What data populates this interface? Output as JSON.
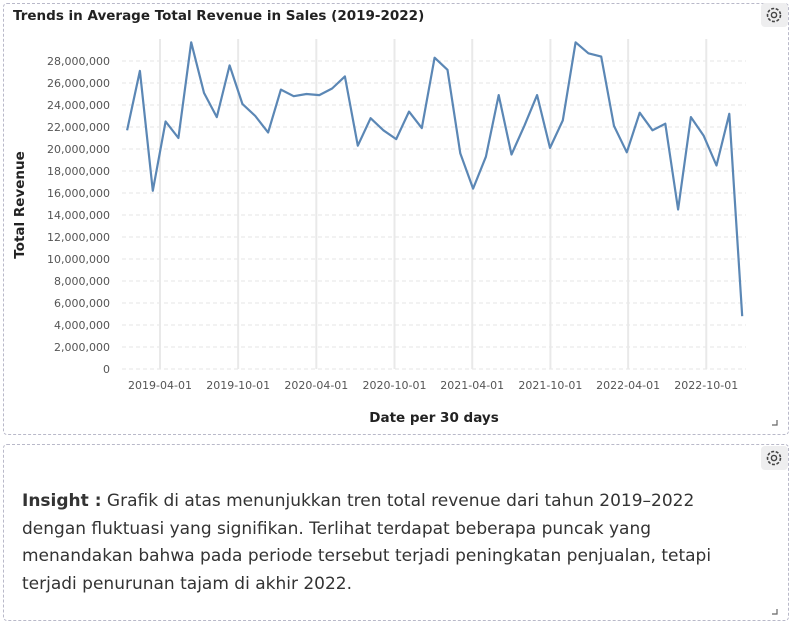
{
  "chart_data": {
    "type": "line",
    "title": "Trends in Average Total Revenue in Sales (2019-2022)",
    "x_label": "Date per 30 days",
    "y_label": "Total Revenue",
    "x": [
      "2019-01-14",
      "2019-02-13",
      "2019-03-15",
      "2019-04-14",
      "2019-05-14",
      "2019-06-13",
      "2019-07-13",
      "2019-08-12",
      "2019-09-11",
      "2019-10-11",
      "2019-11-10",
      "2019-12-10",
      "2020-01-09",
      "2020-02-08",
      "2020-03-09",
      "2020-04-08",
      "2020-05-08",
      "2020-06-07",
      "2020-07-07",
      "2020-08-06",
      "2020-09-05",
      "2020-10-05",
      "2020-11-04",
      "2020-12-04",
      "2021-01-03",
      "2021-02-02",
      "2021-03-04",
      "2021-04-03",
      "2021-05-03",
      "2021-06-02",
      "2021-07-02",
      "2021-08-01",
      "2021-08-31",
      "2021-09-30",
      "2021-10-30",
      "2021-11-29",
      "2021-12-29",
      "2022-01-28",
      "2022-02-27",
      "2022-03-29",
      "2022-04-28",
      "2022-05-28",
      "2022-06-27",
      "2022-07-27",
      "2022-08-26",
      "2022-09-25",
      "2022-10-25",
      "2022-11-24",
      "2022-12-24"
    ],
    "values": [
      21700000,
      27100000,
      16200000,
      22500000,
      21000000,
      29700000,
      25100000,
      22900000,
      27600000,
      24100000,
      23000000,
      21500000,
      25400000,
      24800000,
      25000000,
      24900000,
      25500000,
      26600000,
      20300000,
      22800000,
      21700000,
      20900000,
      23400000,
      21900000,
      28300000,
      27200000,
      19600000,
      16400000,
      19300000,
      24900000,
      19500000,
      22100000,
      24900000,
      20100000,
      22600000,
      29700000,
      28700000,
      28400000,
      22100000,
      19700000,
      23300000,
      21700000,
      22300000,
      14500000,
      22900000,
      21200000,
      18500000,
      23200000,
      4800000
    ],
    "color": "#5b87b5",
    "xlim": [
      "2019-01-02",
      "2023-01-02"
    ],
    "xticks": [
      "2019-04-01",
      "2019-10-01",
      "2020-04-01",
      "2020-10-01",
      "2021-04-01",
      "2021-10-01",
      "2022-04-01",
      "2022-10-01"
    ],
    "ylim": [
      0,
      30000000
    ],
    "yticks": [
      0,
      {
        "value": 2000000,
        "label": "2,000,000"
      },
      {
        "value": 4000000,
        "label": "4,000,000"
      },
      {
        "value": 6000000,
        "label": "6,000,000"
      },
      {
        "value": 8000000,
        "label": "8,000,000"
      },
      {
        "value": 10000000,
        "label": "10,000,000"
      },
      {
        "value": 12000000,
        "label": "12,000,000"
      },
      {
        "value": 14000000,
        "label": "14,000,000"
      },
      {
        "value": 16000000,
        "label": "16,000,000"
      },
      {
        "value": 18000000,
        "label": "18,000,000"
      },
      {
        "value": 20000000,
        "label": "20,000,000"
      },
      {
        "value": 22000000,
        "label": "22,000,000"
      },
      {
        "value": 24000000,
        "label": "24,000,000"
      },
      {
        "value": 26000000,
        "label": "26,000,000"
      },
      {
        "value": 28000000,
        "label": "28,000,000"
      }
    ],
    "grid": true
  },
  "insight": {
    "label": "Insight :",
    "text": "Grafik di atas menunjukkan tren total revenue dari tahun 2019–2022 dengan fluktuasi yang signifikan. Terlihat terdapat beberapa puncak yang menandakan bahwa pada periode tersebut terjadi peningkatan penjualan, tetapi terjadi penurunan tajam di akhir 2022."
  }
}
